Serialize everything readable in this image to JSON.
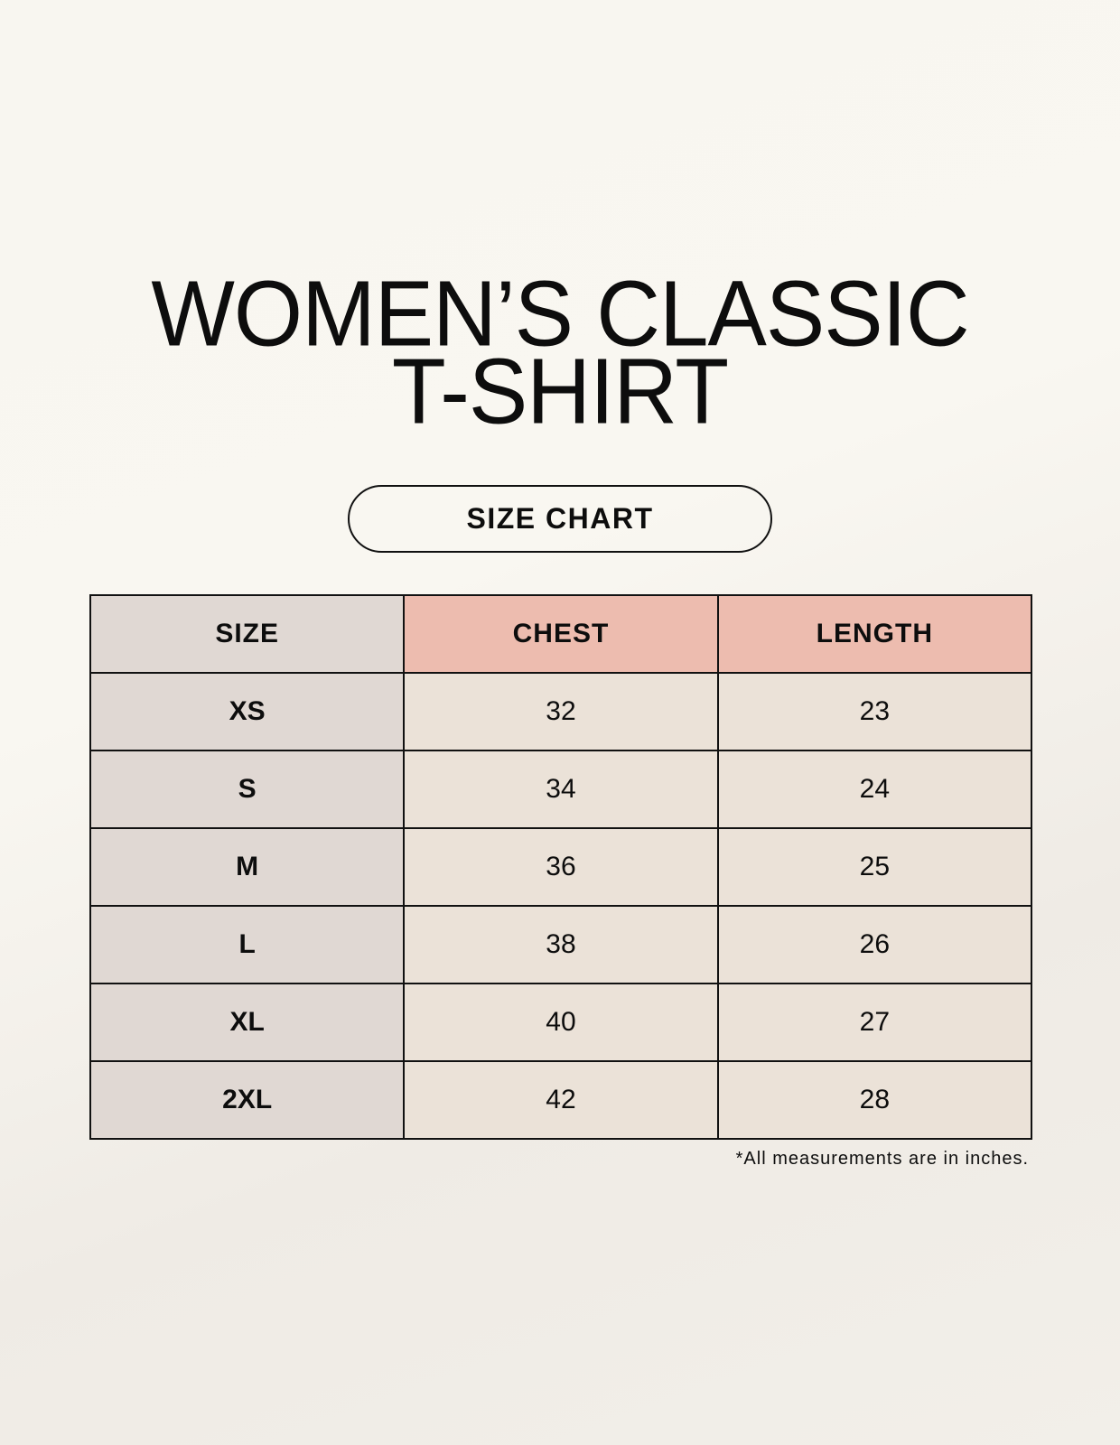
{
  "title_lines": [
    "WOMEN’S CLASSIC",
    "T-SHIRT"
  ],
  "subtitle": "SIZE CHART",
  "table": {
    "headers": [
      "SIZE",
      "CHEST",
      "LENGTH"
    ],
    "rows": [
      [
        "XS",
        "32",
        "23"
      ],
      [
        "S",
        "34",
        "24"
      ],
      [
        "M",
        "36",
        "25"
      ],
      [
        "L",
        "38",
        "26"
      ],
      [
        "XL",
        "40",
        "27"
      ],
      [
        "2XL",
        "42",
        "28"
      ]
    ]
  },
  "footnote": "*All measurements are in inches.",
  "colors": {
    "size_column": "#e0d8d3",
    "header_accent": "#edbcaf",
    "value_cells": "#ebe2d8"
  }
}
